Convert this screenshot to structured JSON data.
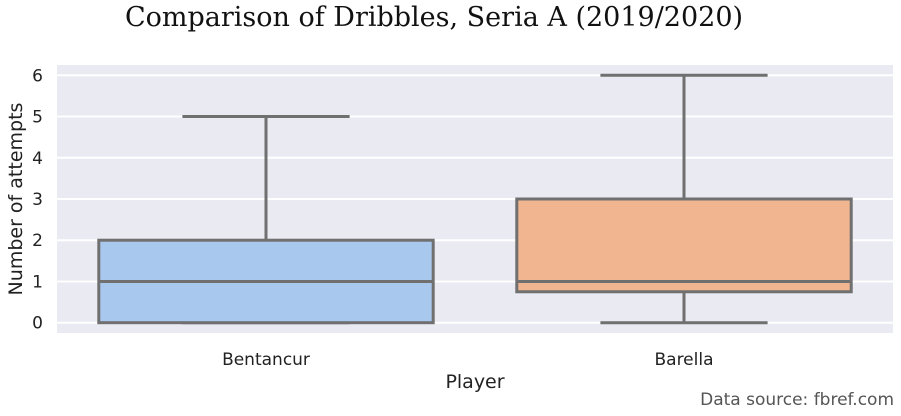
{
  "chart_data": {
    "type": "box",
    "title": "Comparison of Dribbles, Seria A (2019/2020)",
    "xlabel": "Player",
    "ylabel": "Number of attempts",
    "ylim": [
      -0.25,
      6.25
    ],
    "yticks": [
      0,
      1,
      2,
      3,
      4,
      5,
      6
    ],
    "grid": true,
    "categories": [
      "Bentancur",
      "Barella"
    ],
    "boxes": [
      {
        "category": "Bentancur",
        "min": 0,
        "q1": 0,
        "median": 1,
        "q3": 2,
        "max": 5,
        "color": "#a9c8ee"
      },
      {
        "category": "Barella",
        "min": 0,
        "q1": 0.75,
        "median": 1,
        "q3": 3,
        "max": 6,
        "color": "#f1b690"
      }
    ],
    "source": "Data source: fbref.com"
  }
}
